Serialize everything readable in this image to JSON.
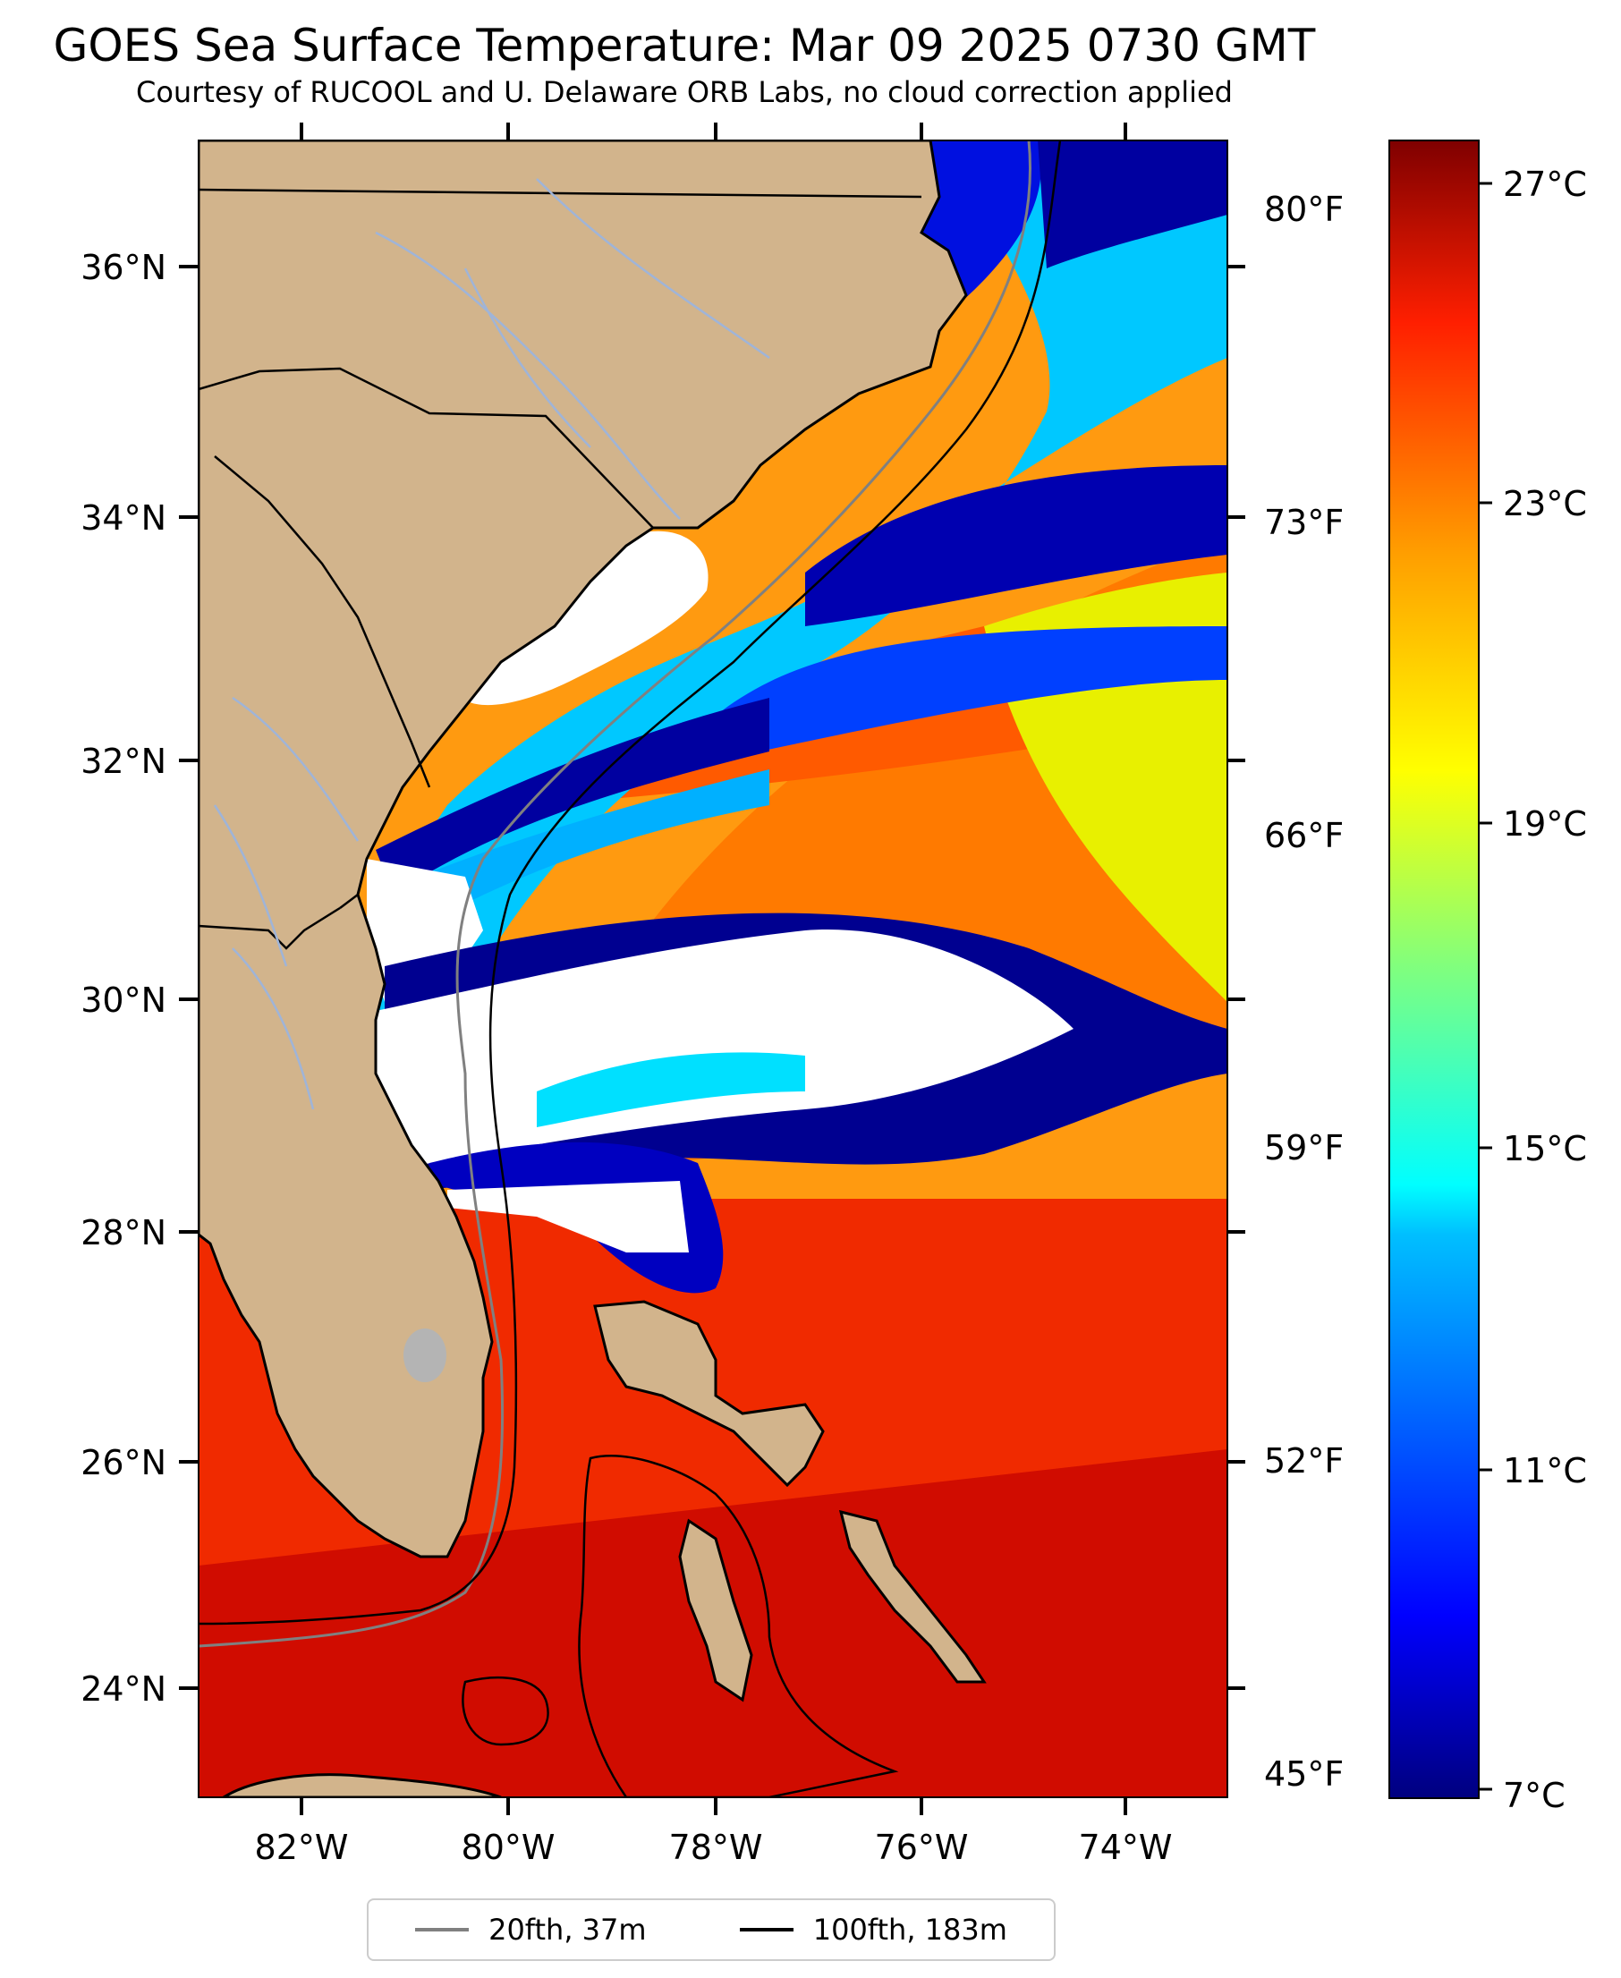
{
  "title": "GOES Sea Surface Temperature: Mar 09 2025 0730 GMT",
  "subtitle": "Courtesy of RUCOOL and U. Delaware ORB Labs, no cloud correction applied",
  "colors": {
    "land": "#d2b48c",
    "no_data": "#ffffff",
    "contour_20fth": "#808080",
    "contour_100fth": "#000000",
    "rivers": "#9fb4d8"
  },
  "map": {
    "projection": "PlateCarree",
    "lon_range": [
      -83,
      -73
    ],
    "lat_range": [
      23.1,
      37
    ]
  },
  "axes": {
    "lat_ticks": [
      "36°N",
      "34°N",
      "32°N",
      "30°N",
      "28°N",
      "26°N",
      "24°N"
    ],
    "lon_ticks": [
      "82°W",
      "80°W",
      "78°W",
      "76°W",
      "74°W"
    ],
    "f_ticks": [
      "80°F",
      "73°F",
      "66°F",
      "59°F",
      "52°F",
      "45°F"
    ]
  },
  "colorbar": {
    "colormap": "jet",
    "range_c": [
      6.5,
      28
    ],
    "tick_labels_c": [
      "27°C",
      "23°C",
      "19°C",
      "15°C",
      "11°C",
      "7°C"
    ]
  },
  "legend": {
    "items": [
      {
        "label": "20fth, 37m",
        "color": "#808080"
      },
      {
        "label": "100fth, 183m",
        "color": "#000000"
      }
    ]
  }
}
